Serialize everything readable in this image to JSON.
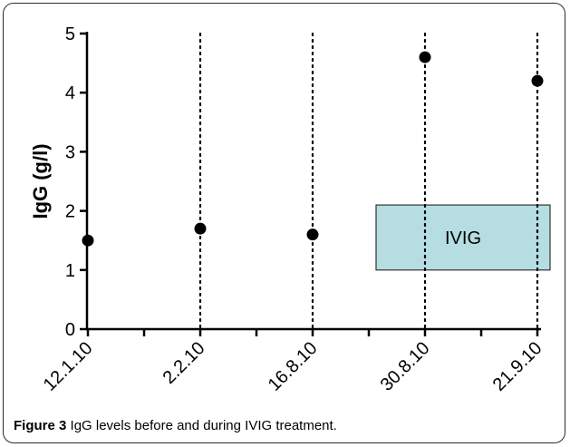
{
  "chart_data": {
    "type": "scatter",
    "title": "",
    "ylabel": "IgG (g/l)",
    "xlabel": "",
    "ylim": [
      0,
      5
    ],
    "yticks": [
      0,
      1,
      2,
      3,
      4,
      5
    ],
    "categories": [
      "12.1.10",
      "2.2.10",
      "16.8.10",
      "30.8.10",
      "21.9.10"
    ],
    "values": [
      1.5,
      1.7,
      1.6,
      4.6,
      4.2
    ],
    "dotted_guides_at": [
      "2.2.10",
      "16.8.10",
      "30.8.10",
      "21.9.10"
    ],
    "treatment_box": {
      "label": "IVIG",
      "from_category": "30.8.10",
      "to_category": "21.9.10",
      "y_from": 1.0,
      "y_to": 2.1,
      "fill": "#b5dde2",
      "stroke": "#333333"
    },
    "marker_color": "#000000"
  },
  "caption": {
    "figure_label": "Figure 3",
    "text": " IgG levels before and during IVIG treatment."
  }
}
